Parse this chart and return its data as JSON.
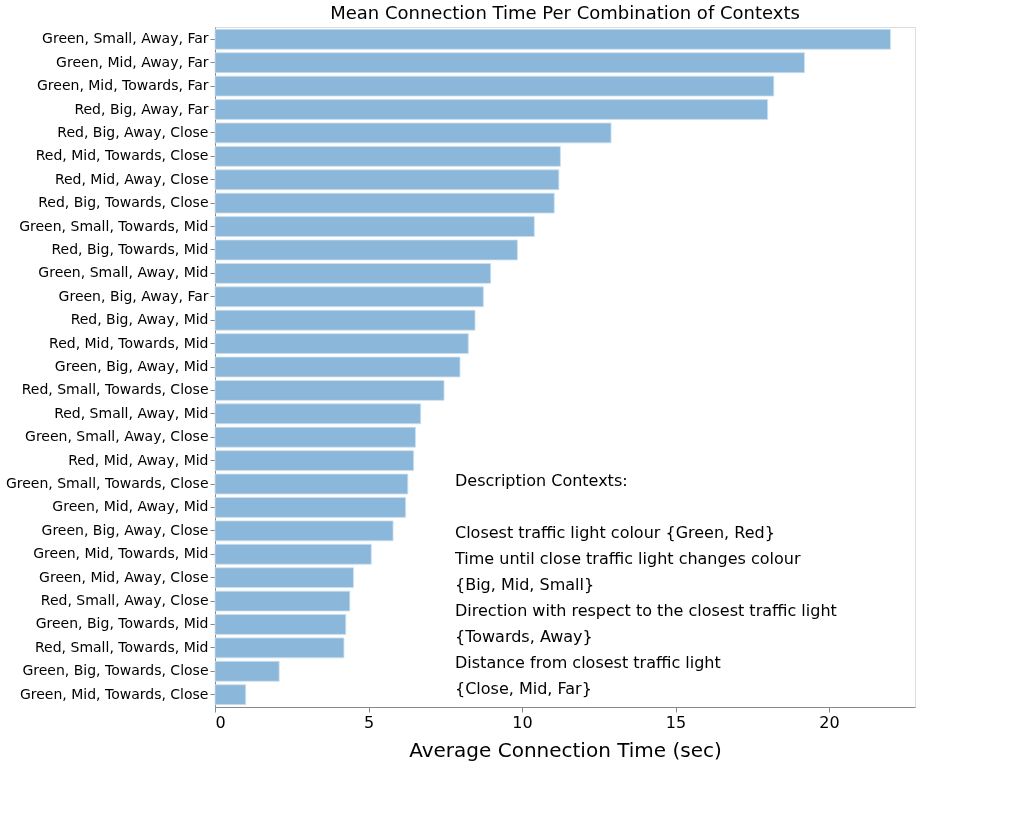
{
  "chart_data": {
    "type": "bar",
    "orientation": "horizontal",
    "title": "Mean Connection Time Per Combination of Contexts",
    "xlabel": "Average Connection Time (sec)",
    "categories": [
      "Green, Small, Away, Far",
      "Green, Mid, Away, Far",
      "Green, Mid, Towards, Far",
      "Red, Big, Away, Far",
      "Red, Big, Away, Close",
      "Red, Mid, Towards, Close",
      "Red, Mid, Away, Close",
      "Red, Big, Towards, Close",
      "Green, Small, Towards, Mid",
      "Red, Big, Towards, Mid",
      "Green, Small, Away, Mid",
      "Green, Big, Away, Far",
      "Red, Big, Away, Mid",
      "Red, Mid, Towards, Mid",
      "Green, Big, Away, Mid",
      "Red, Small, Towards, Close",
      "Red, Small, Away, Mid",
      "Green, Small, Away, Close",
      "Red, Mid, Away, Mid",
      "Green, Small, Towards, Close",
      "Green, Mid, Away, Mid",
      "Green, Big, Away, Close",
      "Green, Mid, Towards, Mid",
      "Green, Mid, Away, Close",
      "Red, Small, Away, Close",
      "Green, Big, Towards, Mid",
      "Red, Small, Towards, Mid",
      "Green, Big, Towards, Close",
      "Green, Mid, Towards, Close"
    ],
    "values": [
      22.0,
      19.2,
      18.2,
      18.0,
      12.9,
      11.25,
      11.2,
      11.05,
      10.4,
      9.85,
      8.98,
      8.74,
      8.47,
      8.25,
      7.98,
      7.46,
      6.7,
      6.53,
      6.47,
      6.28,
      6.21,
      5.8,
      5.09,
      4.51,
      4.39,
      4.26,
      4.2,
      2.09,
      1.0
    ],
    "color": "#8bb8da",
    "xlim": [
      0,
      22.8
    ],
    "xticks": [
      0,
      5,
      10,
      15,
      20
    ],
    "grid": false,
    "annotations": [
      "Description Contexts:",
      "Closest traffic light colour {Green, Red}",
      "Time until close traffic light changes colour",
      "{Big, Mid, Small}",
      "Direction with respect to the closest traffic light",
      "{Towards, Away}",
      "Distance from closest traffic light",
      "{Close, Mid, Far}"
    ]
  }
}
